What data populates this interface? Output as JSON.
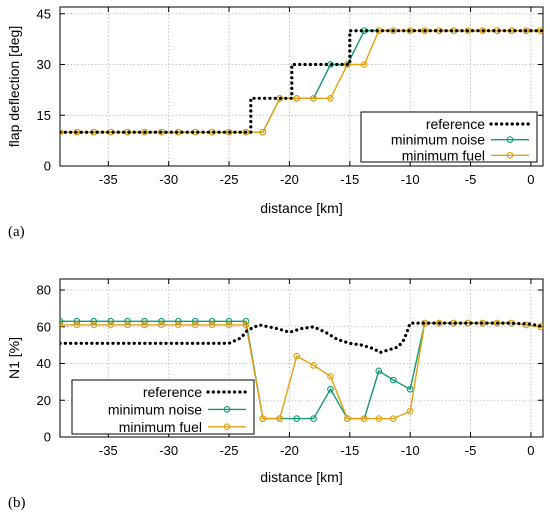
{
  "chart_data": [
    {
      "type": "line",
      "panel_label": "(a)",
      "xlabel": "distance [km]",
      "ylabel": "flap deflection [deg]",
      "xlim": [
        -39,
        1
      ],
      "ylim": [
        0,
        47
      ],
      "xticks": [
        -35,
        -30,
        -25,
        -20,
        -15,
        -10,
        -5,
        0
      ],
      "xtick_labels": [
        "-35",
        "-30",
        "-25",
        "-20",
        "-15",
        "-10",
        "-5",
        "0"
      ],
      "yticks": [
        0,
        15,
        30,
        45
      ],
      "ytick_labels": [
        "0",
        "15",
        "30",
        "45"
      ],
      "grid": true,
      "legend_position": "bottom-right",
      "series": [
        {
          "name": "reference",
          "color": "#000000",
          "style": "dotted",
          "x": [
            -39,
            -23.2,
            -23.2,
            -19.8,
            -19.8,
            -15,
            -15,
            -14.2,
            -14.2,
            1
          ],
          "y": [
            10,
            10,
            20,
            20,
            30,
            30,
            40,
            40,
            40,
            40
          ]
        },
        {
          "name": "minimum noise",
          "color": "#139a74",
          "style": "solid-circles",
          "x": [
            -39,
            -37.6,
            -36.2,
            -34.8,
            -33.4,
            -32,
            -30.6,
            -29.2,
            -27.8,
            -26.4,
            -25,
            -23.6,
            -22.2,
            -20.8,
            -19.4,
            -18,
            -16.6,
            -15.2,
            -13.8,
            -12.6,
            -11.4,
            -10,
            -8.8,
            -7.6,
            -6.4,
            -5.2,
            -4,
            -2.8,
            -1.6,
            -0.4,
            0.8
          ],
          "y": [
            10,
            10,
            10,
            10,
            10,
            10,
            10,
            10,
            10,
            10,
            10,
            10,
            10,
            20,
            20,
            20,
            30,
            30,
            40,
            40,
            40,
            40,
            40,
            40,
            40,
            40,
            40,
            40,
            40,
            40,
            40
          ]
        },
        {
          "name": "minimum fuel",
          "color": "#e6a00f",
          "style": "solid-circles",
          "x": [
            -39,
            -37.6,
            -36.2,
            -34.8,
            -33.4,
            -32,
            -30.6,
            -29.2,
            -27.8,
            -26.4,
            -25,
            -23.6,
            -22.2,
            -20.8,
            -19.4,
            -18,
            -16.6,
            -15.2,
            -13.8,
            -12.6,
            -11.4,
            -10,
            -8.8,
            -7.6,
            -6.4,
            -5.2,
            -4,
            -2.8,
            -1.6,
            -0.4,
            0.8
          ],
          "y": [
            10,
            10,
            10,
            10,
            10,
            10,
            10,
            10,
            10,
            10,
            10,
            10,
            10,
            20,
            20,
            20,
            20,
            30,
            30,
            40,
            40,
            40,
            40,
            40,
            40,
            40,
            40,
            40,
            40,
            40,
            40
          ]
        }
      ]
    },
    {
      "type": "line",
      "panel_label": "(b)",
      "xlabel": "distance [km]",
      "ylabel": "N1 [%]",
      "xlim": [
        -39,
        1
      ],
      "ylim": [
        0,
        86
      ],
      "xticks": [
        -35,
        -30,
        -25,
        -20,
        -15,
        -10,
        -5,
        0
      ],
      "xtick_labels": [
        "-35",
        "-30",
        "-25",
        "-20",
        "-15",
        "-10",
        "-5",
        "0"
      ],
      "yticks": [
        0,
        20,
        40,
        60,
        80
      ],
      "ytick_labels": [
        "0",
        "20",
        "40",
        "60",
        "80"
      ],
      "grid": true,
      "legend_position": "bottom-left",
      "series": [
        {
          "name": "reference",
          "color": "#000000",
          "style": "dotted",
          "x": [
            -39,
            -34,
            -30,
            -27,
            -25,
            -24,
            -23.5,
            -22.5,
            -21,
            -20,
            -19,
            -18,
            -17,
            -16,
            -15,
            -14,
            -13,
            -12.5,
            -12,
            -11,
            -10.5,
            -10,
            -8,
            -5,
            -2,
            0,
            1
          ],
          "y": [
            51,
            51,
            51,
            51,
            51,
            54,
            58,
            61,
            59,
            57,
            59,
            60,
            57,
            53,
            51,
            50,
            48,
            46,
            47,
            49,
            53,
            62,
            62,
            62,
            62,
            61.5,
            60
          ]
        },
        {
          "name": "minimum noise",
          "color": "#139a74",
          "style": "solid-circles",
          "x": [
            -39,
            -37.6,
            -36.2,
            -34.8,
            -33.4,
            -32,
            -30.6,
            -29.2,
            -27.8,
            -26.4,
            -25,
            -23.6,
            -22.2,
            -20.8,
            -19.4,
            -18,
            -16.6,
            -15.2,
            -13.8,
            -12.6,
            -11.4,
            -10,
            -8.8,
            -7.6,
            -6.4,
            -5.2,
            -4,
            -2.8,
            -1.6,
            -0.4,
            0.8
          ],
          "y": [
            63,
            63,
            63,
            63,
            63,
            63,
            63,
            63,
            63,
            63,
            63,
            63,
            10,
            10,
            10,
            10,
            26,
            10,
            10,
            36,
            31,
            26,
            62,
            62,
            62,
            62,
            62,
            62,
            62,
            61,
            60
          ]
        },
        {
          "name": "minimum fuel",
          "color": "#e6a00f",
          "style": "solid-circles",
          "x": [
            -39,
            -37.6,
            -36.2,
            -34.8,
            -33.4,
            -32,
            -30.6,
            -29.2,
            -27.8,
            -26.4,
            -25,
            -23.6,
            -22.2,
            -20.8,
            -19.4,
            -18,
            -16.6,
            -15.2,
            -13.8,
            -12.6,
            -11.4,
            -10,
            -8.8,
            -7.6,
            -6.4,
            -5.2,
            -4,
            -2.8,
            -1.6,
            -0.4,
            0.8
          ],
          "y": [
            61,
            61,
            61,
            61,
            61,
            61,
            61,
            61,
            61,
            61,
            61,
            61,
            10,
            10,
            44,
            39,
            33,
            10,
            10,
            10,
            10,
            14,
            62,
            62,
            62,
            62,
            62,
            62,
            62,
            61,
            60
          ]
        }
      ]
    }
  ]
}
